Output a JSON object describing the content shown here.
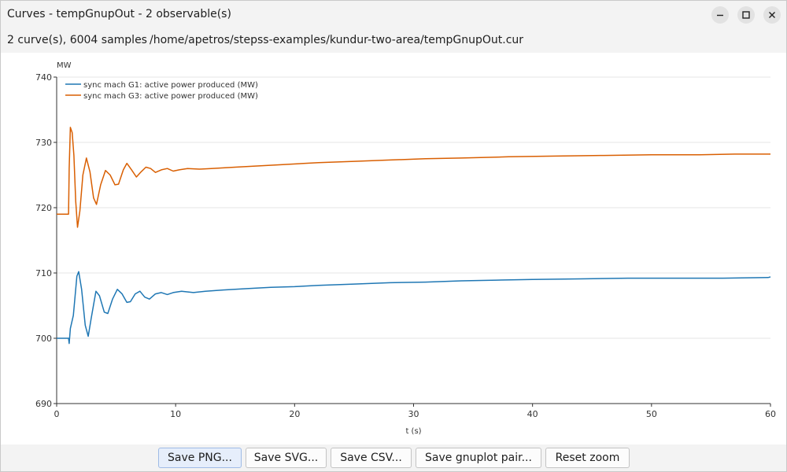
{
  "window": {
    "title": "Curves - tempGnupOut - 2 observable(s)",
    "controls": [
      "minimize-icon",
      "maximize-icon",
      "close-icon"
    ]
  },
  "info": {
    "count": "2 curve(s), 6004 samples",
    "path": "/home/apetros/stepss-examples/kundur-two-area/tempGnupOut.cur"
  },
  "buttons": {
    "save_png": "Save PNG...",
    "save_svg": "Save SVG...",
    "save_csv": "Save CSV...",
    "save_gnuplot": "Save gnuplot pair...",
    "reset_zoom": "Reset zoom"
  },
  "chart_data": {
    "type": "line",
    "title": "",
    "xlabel": "t (s)",
    "ylabel": "MW",
    "xlim": [
      0,
      60
    ],
    "ylim": [
      690,
      740
    ],
    "xticks": [
      "0",
      "10",
      "20",
      "30",
      "40",
      "50",
      "60"
    ],
    "yticks": [
      "690",
      "700",
      "710",
      "720",
      "730",
      "740"
    ],
    "grid": "horizontal",
    "legend": "top-left",
    "series": [
      {
        "name": "sync mach G1: active power produced (MW)",
        "color": "#1f77b4",
        "points": [
          [
            0,
            700.0
          ],
          [
            1.0,
            700.0
          ],
          [
            1.05,
            699.2
          ],
          [
            1.15,
            701.5
          ],
          [
            1.4,
            703.5
          ],
          [
            1.7,
            709.5
          ],
          [
            1.85,
            710.2
          ],
          [
            2.1,
            707.5
          ],
          [
            2.4,
            702.0
          ],
          [
            2.65,
            700.3
          ],
          [
            2.9,
            703.0
          ],
          [
            3.3,
            707.2
          ],
          [
            3.6,
            706.5
          ],
          [
            4.0,
            704.0
          ],
          [
            4.3,
            703.8
          ],
          [
            4.7,
            706.0
          ],
          [
            5.1,
            707.5
          ],
          [
            5.5,
            706.8
          ],
          [
            5.9,
            705.5
          ],
          [
            6.2,
            705.6
          ],
          [
            6.6,
            706.8
          ],
          [
            7.0,
            707.2
          ],
          [
            7.4,
            706.3
          ],
          [
            7.8,
            706.0
          ],
          [
            8.3,
            706.8
          ],
          [
            8.8,
            707.0
          ],
          [
            9.3,
            706.7
          ],
          [
            9.8,
            707.0
          ],
          [
            10.5,
            707.2
          ],
          [
            11.5,
            707.0
          ],
          [
            12.5,
            707.2
          ],
          [
            14,
            707.4
          ],
          [
            16,
            707.6
          ],
          [
            18,
            707.8
          ],
          [
            20,
            707.9
          ],
          [
            22,
            708.1
          ],
          [
            25,
            708.3
          ],
          [
            28,
            708.5
          ],
          [
            31,
            708.6
          ],
          [
            34,
            708.8
          ],
          [
            37,
            708.9
          ],
          [
            40,
            709.0
          ],
          [
            44,
            709.1
          ],
          [
            48,
            709.2
          ],
          [
            52,
            709.2
          ],
          [
            56,
            709.2
          ],
          [
            59.8,
            709.3
          ],
          [
            60,
            709.4
          ]
        ]
      },
      {
        "name": "sync mach G3: active power produced (MW)",
        "color": "#d95f02",
        "points": [
          [
            0,
            719.0
          ],
          [
            1.0,
            719.0
          ],
          [
            1.05,
            726.0
          ],
          [
            1.15,
            732.3
          ],
          [
            1.3,
            731.5
          ],
          [
            1.45,
            728.0
          ],
          [
            1.6,
            721.0
          ],
          [
            1.75,
            717.0
          ],
          [
            1.95,
            719.5
          ],
          [
            2.2,
            725.0
          ],
          [
            2.5,
            727.6
          ],
          [
            2.8,
            725.5
          ],
          [
            3.1,
            721.5
          ],
          [
            3.35,
            720.5
          ],
          [
            3.7,
            723.5
          ],
          [
            4.1,
            725.7
          ],
          [
            4.5,
            725.0
          ],
          [
            4.9,
            723.5
          ],
          [
            5.2,
            723.6
          ],
          [
            5.6,
            725.8
          ],
          [
            5.9,
            726.8
          ],
          [
            6.3,
            725.8
          ],
          [
            6.7,
            724.7
          ],
          [
            7.1,
            725.5
          ],
          [
            7.5,
            726.2
          ],
          [
            7.9,
            726.0
          ],
          [
            8.3,
            725.4
          ],
          [
            8.8,
            725.8
          ],
          [
            9.3,
            726.0
          ],
          [
            9.8,
            725.6
          ],
          [
            10.3,
            725.8
          ],
          [
            11,
            726.0
          ],
          [
            12,
            725.9
          ],
          [
            13,
            726.0
          ],
          [
            15,
            726.2
          ],
          [
            17,
            726.4
          ],
          [
            19,
            726.6
          ],
          [
            22,
            726.9
          ],
          [
            25,
            727.1
          ],
          [
            28,
            727.3
          ],
          [
            31,
            727.5
          ],
          [
            34,
            727.6
          ],
          [
            38,
            727.8
          ],
          [
            42,
            727.9
          ],
          [
            46,
            728.0
          ],
          [
            50,
            728.1
          ],
          [
            54,
            728.1
          ],
          [
            57,
            728.2
          ],
          [
            60,
            728.2
          ]
        ]
      }
    ]
  }
}
